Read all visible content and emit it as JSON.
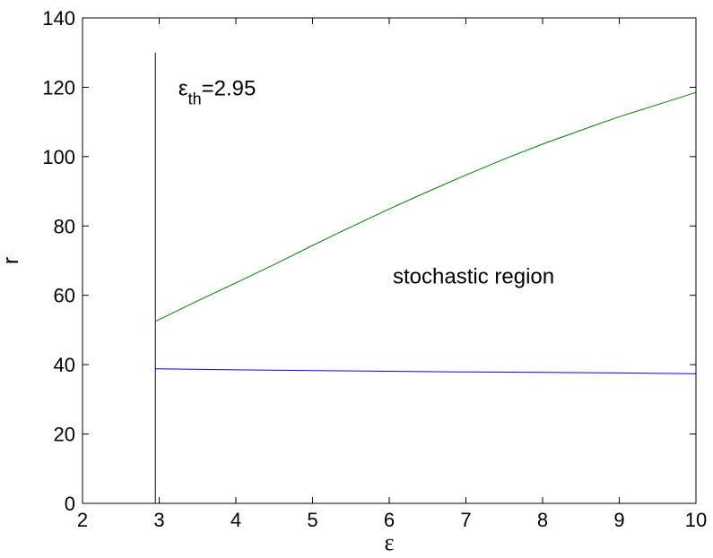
{
  "chart_data": {
    "type": "line",
    "xlabel": "ε",
    "ylabel": "r",
    "xlim": [
      2,
      10
    ],
    "ylim": [
      0,
      140
    ],
    "xticks": [
      2,
      3,
      4,
      5,
      6,
      7,
      8,
      9,
      10
    ],
    "yticks": [
      0,
      20,
      40,
      60,
      80,
      100,
      120,
      140
    ],
    "grid": false,
    "threshold": {
      "x": 2.95,
      "y_top": 130,
      "color": "#000000",
      "label_symbol": "ε",
      "label_subscript": "th",
      "label_value": "=2.95",
      "label_at": [
        3.25,
        120
      ]
    },
    "series": [
      {
        "color": "#007f00",
        "x": [
          2.95,
          3.5,
          4,
          4.5,
          5,
          5.5,
          6,
          6.5,
          7,
          7.5,
          8,
          8.5,
          9,
          9.5,
          10
        ],
        "y": [
          52.5,
          58.4,
          63.6,
          68.9,
          74.4,
          79.7,
          84.9,
          89.9,
          94.7,
          99.3,
          103.6,
          107.6,
          111.5,
          115.0,
          118.5
        ]
      },
      {
        "color": "#0000ff",
        "x": [
          2.95,
          4,
          5,
          6,
          7,
          8,
          9,
          10
        ],
        "y": [
          38.8,
          38.5,
          38.3,
          38.1,
          37.9,
          37.8,
          37.6,
          37.4
        ]
      }
    ],
    "annotations": [
      {
        "text": "stochastic region",
        "at": [
          7.1,
          65.5
        ]
      }
    ]
  }
}
